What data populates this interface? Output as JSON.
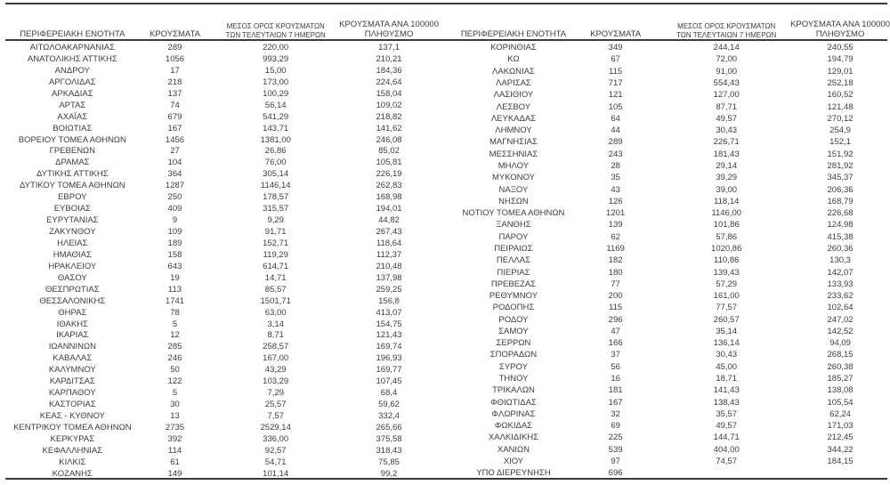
{
  "page": {
    "background_color": "#ffffff",
    "text_color": "#3d3d3d",
    "rule_color": "#3c3c3c"
  },
  "headers": {
    "region": "ΠΕΡΙΦΕΡΕΙΑΚΗ ΕΝΟΤΗΤΑ",
    "cases": "ΚΡΟΥΣΜΑΤΑ",
    "avg7_line1": "ΜΕΣΟΣ ΟΡΟΣ ΚΡΟΥΣΜΑΤΩΝ",
    "avg7_line2": "ΤΩΝ ΤΕΛΕΥΤΑΙΩΝ 7 ΗΜΕΡΩΝ",
    "per100k_line1": "ΚΡΟΥΣΜΑΤΑ ΑΝΑ 100000",
    "per100k_line2": "ΠΛΗΘΥΣΜΟ"
  },
  "left_table": {
    "rows": [
      [
        "ΑΙΤΩΛΟΑΚΑΡΝΑΝΙΑΣ",
        "289",
        "220,00",
        "137,1"
      ],
      [
        "ΑΝΑΤΟΛΙΚΗΣ ΑΤΤΙΚΗΣ",
        "1056",
        "993,29",
        "210,21"
      ],
      [
        "ΑΝΔΡΟΥ",
        "17",
        "15,00",
        "184,36"
      ],
      [
        "ΑΡΓΟΛΙΔΑΣ",
        "218",
        "173,00",
        "224,64"
      ],
      [
        "ΑΡΚΑΔΙΑΣ",
        "137",
        "100,29",
        "158,04"
      ],
      [
        "ΑΡΤΑΣ",
        "74",
        "56,14",
        "109,02"
      ],
      [
        "ΑΧΑΪΑΣ",
        "679",
        "541,29",
        "218,82"
      ],
      [
        "ΒΟΙΩΤΙΑΣ",
        "167",
        "143,71",
        "141,62"
      ],
      [
        "ΒΟΡΕΙΟΥ ΤΟΜΕΑ ΑΘΗΝΩΝ",
        "1456",
        "1381,00",
        "246,08"
      ],
      [
        "ΓΡΕΒΕΝΩΝ",
        "27",
        "26,86",
        "85,02"
      ],
      [
        "ΔΡΑΜΑΣ",
        "104",
        "76,00",
        "105,81"
      ],
      [
        "ΔΥΤΙΚΗΣ ΑΤΤΙΚΗΣ",
        "364",
        "305,14",
        "226,19"
      ],
      [
        "ΔΥΤΙΚΟΥ ΤΟΜΕΑ ΑΘΗΝΩΝ",
        "1287",
        "1146,14",
        "262,83"
      ],
      [
        "ΕΒΡΟΥ",
        "250",
        "178,57",
        "168,98"
      ],
      [
        "ΕΥΒΟΙΑΣ",
        "409",
        "315,57",
        "194,01"
      ],
      [
        "ΕΥΡΥΤΑΝΙΑΣ",
        "9",
        "9,29",
        "44,82"
      ],
      [
        "ΖΑΚΥΝΘΟΥ",
        "109",
        "91,71",
        "267,43"
      ],
      [
        "ΗΛΕΙΑΣ",
        "189",
        "152,71",
        "118,64"
      ],
      [
        "ΗΜΑΘΙΑΣ",
        "158",
        "119,29",
        "112,37"
      ],
      [
        "ΗΡΑΚΛΕΙΟΥ",
        "643",
        "614,71",
        "210,48"
      ],
      [
        "ΘΑΣΟΥ",
        "19",
        "14,71",
        "137,98"
      ],
      [
        "ΘΕΣΠΡΩΤΙΑΣ",
        "113",
        "85,57",
        "259,25"
      ],
      [
        "ΘΕΣΣΑΛΟΝΙΚΗΣ",
        "1741",
        "1501,71",
        "156,8"
      ],
      [
        "ΘΗΡΑΣ",
        "78",
        "63,00",
        "413,07"
      ],
      [
        "ΙΘΑΚΗΣ",
        "5",
        "3,14",
        "154,75"
      ],
      [
        "ΙΚΑΡΙΑΣ",
        "12",
        "8,71",
        "121,43"
      ],
      [
        "ΙΩΑΝΝΙΝΩΝ",
        "285",
        "258,57",
        "169,74"
      ],
      [
        "ΚΑΒΑΛΑΣ",
        "246",
        "167,00",
        "196,93"
      ],
      [
        "ΚΑΛΥΜΝΟΥ",
        "50",
        "43,29",
        "169,77"
      ],
      [
        "ΚΑΡΔΙΤΣΑΣ",
        "122",
        "103,29",
        "107,45"
      ],
      [
        "ΚΑΡΠΑΘΟΥ",
        "5",
        "7,29",
        "68,4"
      ],
      [
        "ΚΑΣΤΟΡΙΑΣ",
        "30",
        "25,57",
        "59,62"
      ],
      [
        "ΚΕΑΣ - ΚΥΘΝΟΥ",
        "13",
        "7,57",
        "332,4"
      ],
      [
        "ΚΕΝΤΡΙΚΟΥ ΤΟΜΕΑ ΑΘΗΝΩΝ",
        "2735",
        "2529,14",
        "265,66"
      ],
      [
        "ΚΕΡΚΥΡΑΣ",
        "392",
        "336,00",
        "375,58"
      ],
      [
        "ΚΕΦΑΛΛΗΝΙΑΣ",
        "114",
        "92,57",
        "318,43"
      ],
      [
        "ΚΙΛΚΙΣ",
        "61",
        "54,71",
        "75,85"
      ],
      [
        "ΚΟΖΑΝΗΣ",
        "149",
        "101,14",
        "99,2"
      ]
    ]
  },
  "right_table": {
    "rows": [
      [
        "ΚΟΡΙΝΘΙΑΣ",
        "349",
        "244,14",
        "240,55"
      ],
      [
        "ΚΩ",
        "67",
        "72,00",
        "194,79"
      ],
      [
        "ΛΑΚΩΝΙΑΣ",
        "115",
        "91,00",
        "129,01"
      ],
      [
        "ΛΑΡΙΣΑΣ",
        "717",
        "554,43",
        "252,18"
      ],
      [
        "ΛΑΣΙΘΙΟΥ",
        "121",
        "127,00",
        "160,52"
      ],
      [
        "ΛΕΣΒΟΥ",
        "105",
        "87,71",
        "121,48"
      ],
      [
        "ΛΕΥΚΑΔΑΣ",
        "64",
        "49,57",
        "270,12"
      ],
      [
        "ΛΗΜΝΟΥ",
        "44",
        "30,43",
        "254,9"
      ],
      [
        "ΜΑΓΝΗΣΙΑΣ",
        "289",
        "226,71",
        "152,1"
      ],
      [
        "ΜΕΣΣΗΝΙΑΣ",
        "243",
        "181,43",
        "151,92"
      ],
      [
        "ΜΗΛΟΥ",
        "28",
        "29,14",
        "281,92"
      ],
      [
        "ΜΥΚΟΝΟΥ",
        "35",
        "39,29",
        "345,37"
      ],
      [
        "ΝΑΞΟΥ",
        "43",
        "39,00",
        "206,36"
      ],
      [
        "ΝΗΣΩΝ",
        "126",
        "118,14",
        "168,79"
      ],
      [
        "ΝΟΤΙΟΥ ΤΟΜΕΑ ΑΘΗΝΩΝ",
        "1201",
        "1146,00",
        "226,68"
      ],
      [
        "ΞΑΝΘΗΣ",
        "139",
        "101,86",
        "124,98"
      ],
      [
        "ΠΑΡΟΥ",
        "62",
        "57,86",
        "415,38"
      ],
      [
        "ΠΕΙΡΑΙΩΣ",
        "1169",
        "1020,86",
        "260,36"
      ],
      [
        "ΠΕΛΛΑΣ",
        "182",
        "110,86",
        "130,3"
      ],
      [
        "ΠΙΕΡΙΑΣ",
        "180",
        "139,43",
        "142,07"
      ],
      [
        "ΠΡΕΒΕΖΑΣ",
        "77",
        "57,29",
        "133,93"
      ],
      [
        "ΡΕΘΥΜΝΟΥ",
        "200",
        "161,00",
        "233,62"
      ],
      [
        "ΡΟΔΟΠΗΣ",
        "115",
        "77,57",
        "102,64"
      ],
      [
        "ΡΟΔΟΥ",
        "296",
        "260,57",
        "247,02"
      ],
      [
        "ΣΑΜΟΥ",
        "47",
        "35,14",
        "142,52"
      ],
      [
        "ΣΕΡΡΩΝ",
        "166",
        "136,14",
        "94,09"
      ],
      [
        "ΣΠΟΡΑΔΩΝ",
        "37",
        "30,43",
        "268,15"
      ],
      [
        "ΣΥΡΟΥ",
        "56",
        "45,00",
        "260,38"
      ],
      [
        "ΤΗΝΟΥ",
        "16",
        "18,71",
        "185,27"
      ],
      [
        "ΤΡΙΚΑΛΩΝ",
        "181",
        "141,43",
        "138,08"
      ],
      [
        "ΦΘΙΩΤΙΔΑΣ",
        "167",
        "138,43",
        "105,54"
      ],
      [
        "ΦΛΩΡΙΝΑΣ",
        "32",
        "35,57",
        "62,24"
      ],
      [
        "ΦΩΚΙΔΑΣ",
        "69",
        "49,57",
        "171,03"
      ],
      [
        "ΧΑΛΚΙΔΙΚΗΣ",
        "225",
        "144,71",
        "212,45"
      ],
      [
        "ΧΑΝΙΩΝ",
        "539",
        "404,00",
        "344,22"
      ],
      [
        "ΧΙΟΥ",
        "97",
        "74,57",
        "184,15"
      ],
      [
        "ΥΠΟ ΔΙΕΡΕΥΝΗΣΗ",
        "696",
        "",
        ""
      ]
    ]
  }
}
